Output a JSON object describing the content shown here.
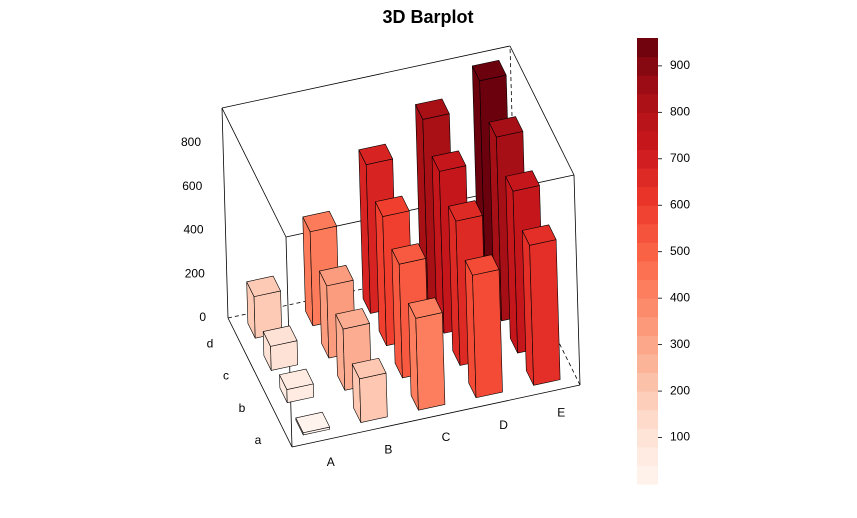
{
  "chart_data": {
    "type": "bar3d",
    "title": "3D Barplot",
    "x_categories": [
      "A",
      "B",
      "C",
      "D",
      "E"
    ],
    "y_categories": [
      "a",
      "b",
      "c",
      "d"
    ],
    "values": [
      [
        10,
        60,
        110,
        190
      ],
      [
        200,
        280,
        330,
        430
      ],
      [
        420,
        520,
        590,
        680
      ],
      [
        560,
        660,
        740,
        830
      ],
      [
        640,
        740,
        840,
        950
      ]
    ],
    "zlim": [
      0,
      960
    ],
    "zticks": [
      0,
      200,
      400,
      600,
      800
    ],
    "colorbar_ticks": [
      100,
      200,
      300,
      400,
      500,
      600,
      700,
      800,
      900
    ],
    "palette": [
      "#fff5f0",
      "#fee0d2",
      "#fcbba1",
      "#fc9272",
      "#fb6a4a",
      "#ef3b2c",
      "#cb181d",
      "#a50f15",
      "#67000d"
    ]
  }
}
